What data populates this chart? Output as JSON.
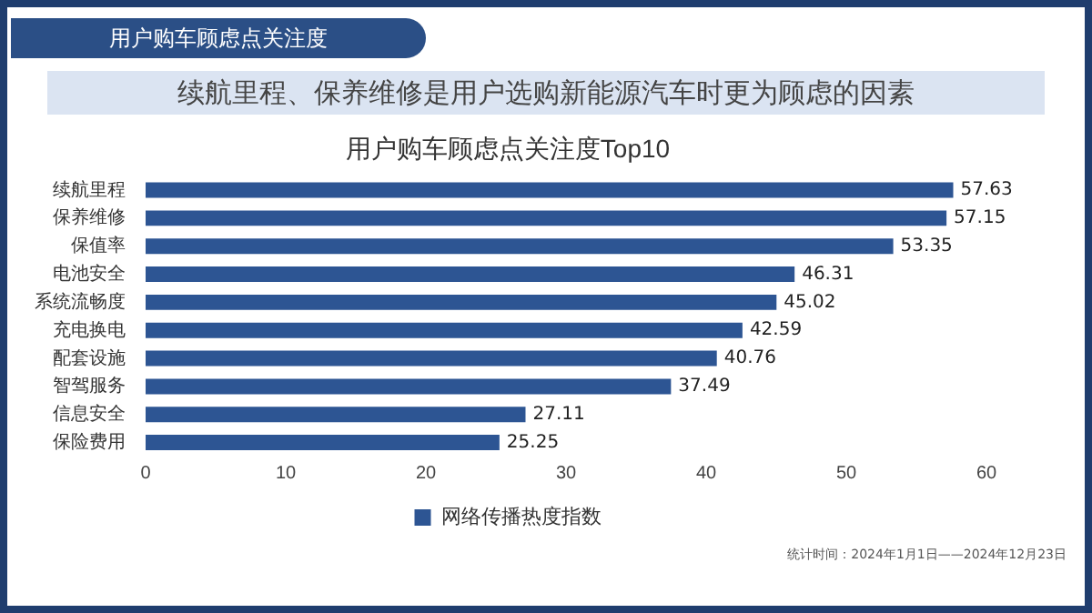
{
  "chart_data": {
    "type": "bar",
    "orientation": "horizontal",
    "title": "用户购车顾虑点关注度Top10",
    "subtitle": "续航里程、保养维修是用户选购新能源汽车时更为顾虑的因素",
    "annotations": [
      "用户购车顾虑点关注度",
      "统计时间：2024年1月1日——2024年12月23日"
    ],
    "categories": [
      "续航里程",
      "保养维修",
      "保值率",
      "电池安全",
      "系统流畅度",
      "充电换电",
      "配套设施",
      "智驾服务",
      "信息安全",
      "保险费用"
    ],
    "series": [
      {
        "name": "网络传播热度指数",
        "color": "#2d5593",
        "values": [
          57.63,
          57.15,
          53.35,
          46.31,
          45.02,
          42.59,
          40.76,
          37.49,
          27.11,
          25.25
        ]
      }
    ],
    "xlim": [
      0,
      60
    ],
    "xticks": [
      0,
      10,
      20,
      30,
      40,
      50,
      60
    ],
    "grid": false,
    "legend": "bottom",
    "data_labels": true
  }
}
